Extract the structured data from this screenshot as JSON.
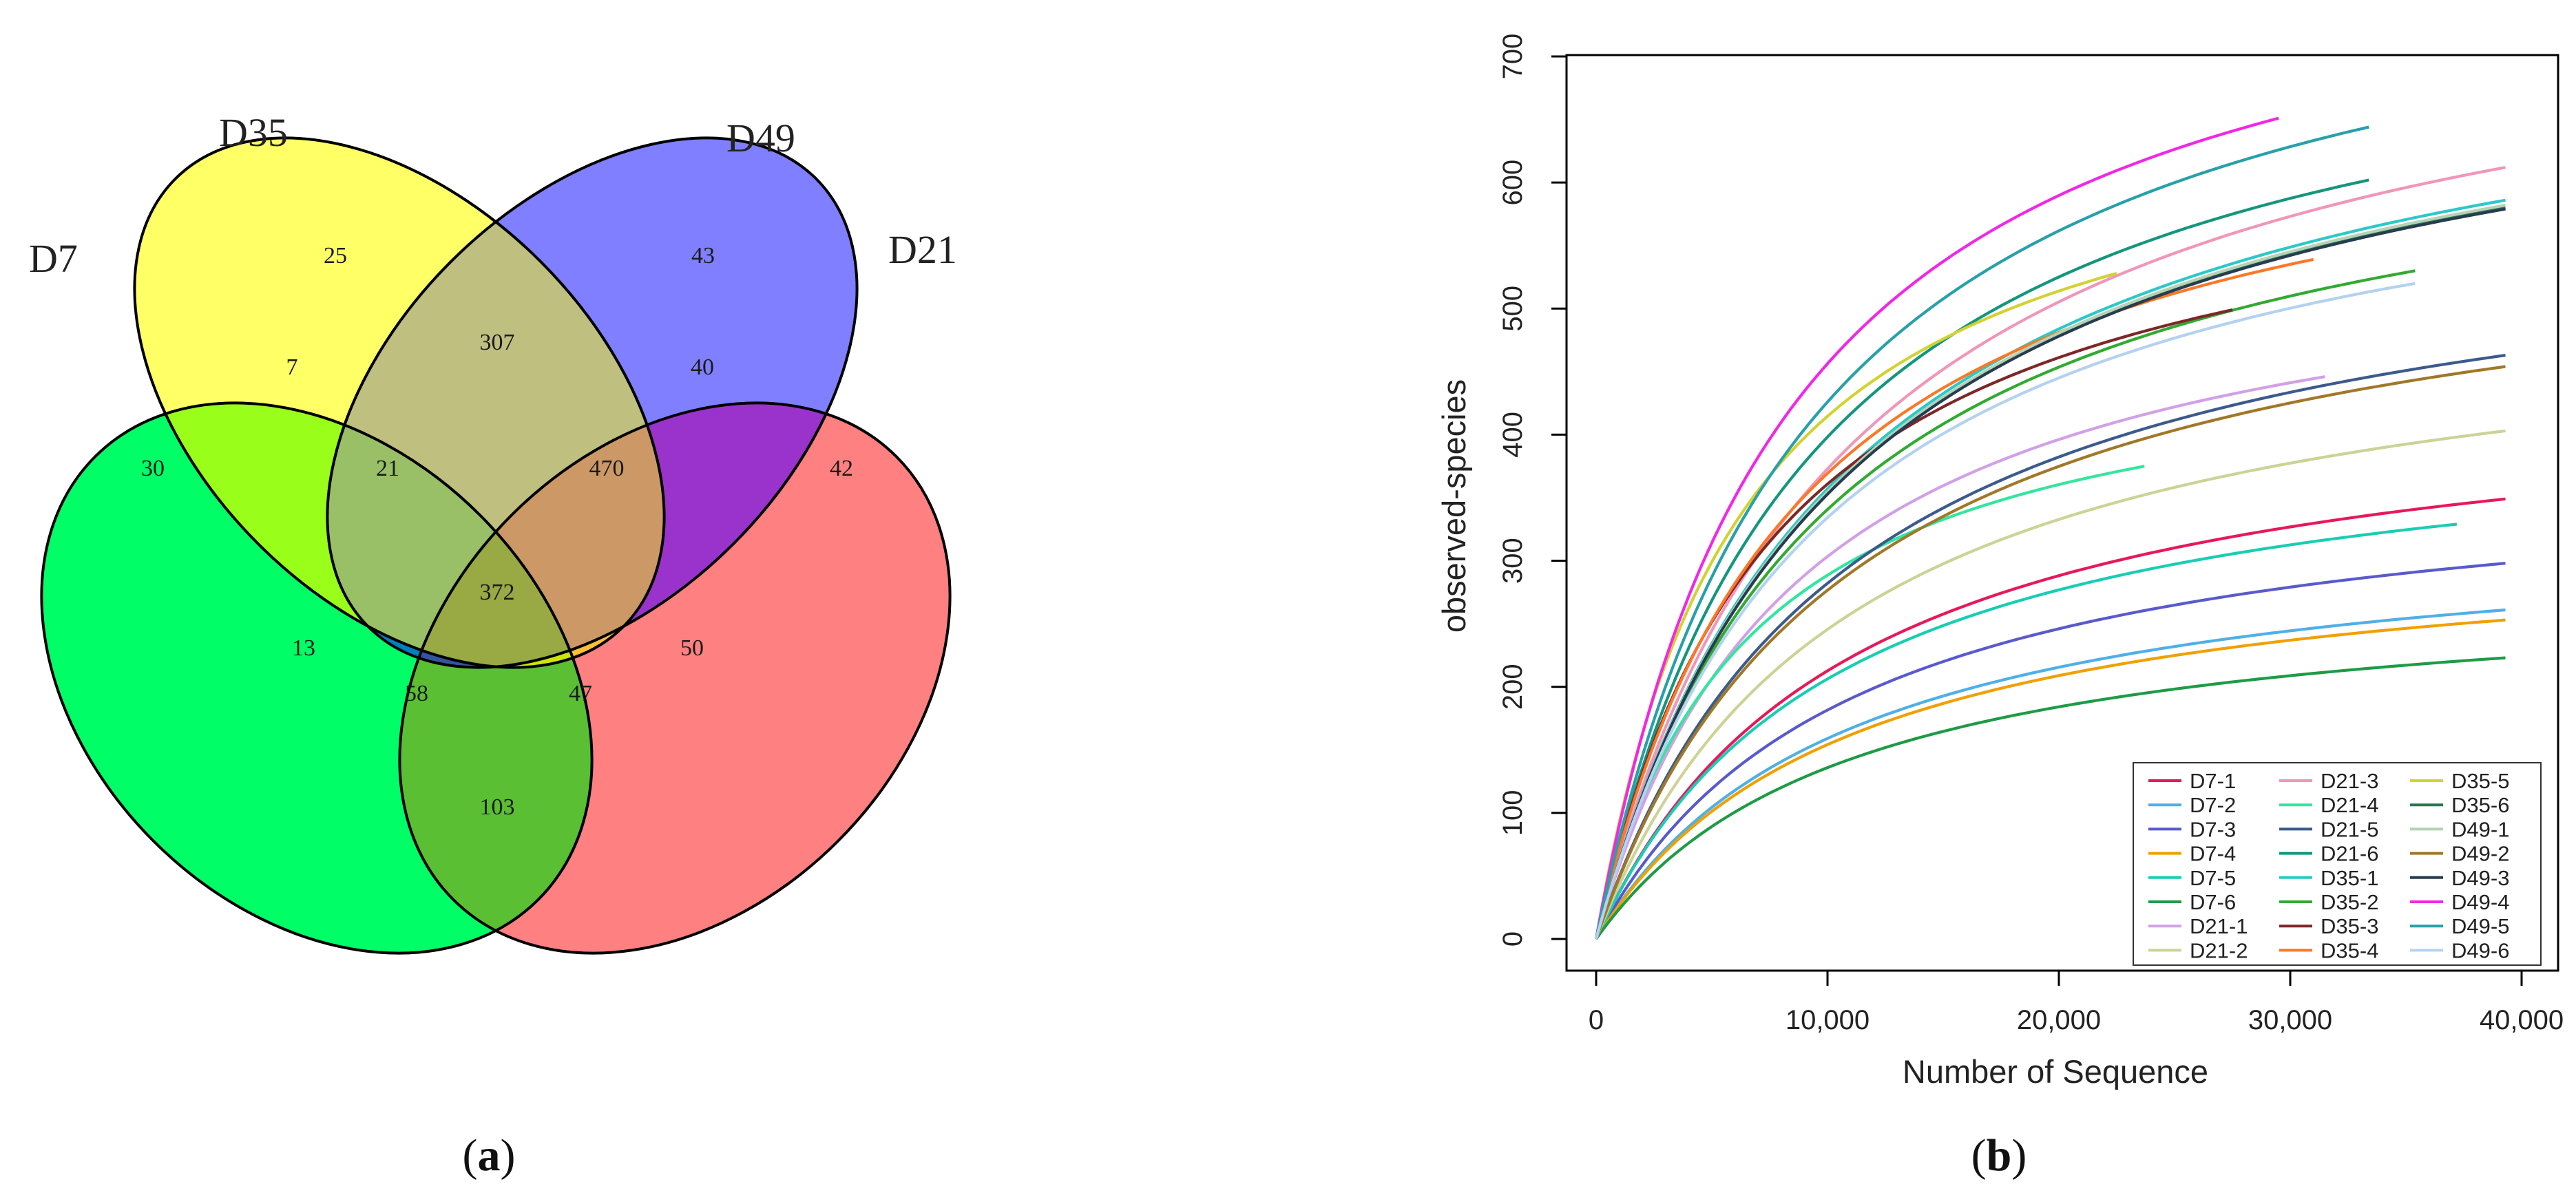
{
  "venn": {
    "sets": [
      {
        "name": "D7",
        "color": "#00FF66"
      },
      {
        "name": "D35",
        "color": "#FFFF66"
      },
      {
        "name": "D49",
        "color": "#7F7FFF"
      },
      {
        "name": "D21",
        "color": "#FF8080"
      }
    ],
    "regions": [
      {
        "id": "d7_only",
        "count": "30"
      },
      {
        "id": "d35_only",
        "count": "25"
      },
      {
        "id": "d49_only",
        "count": "43"
      },
      {
        "id": "d21_only",
        "count": "42"
      },
      {
        "id": "d7_d35",
        "count": "7"
      },
      {
        "id": "d35_d49",
        "count": "307"
      },
      {
        "id": "d49_d21",
        "count": "40"
      },
      {
        "id": "d7_d35_d49",
        "count": "21"
      },
      {
        "id": "d35_d49_d21",
        "count": "470"
      },
      {
        "id": "all_four",
        "count": "372"
      },
      {
        "id": "d7_d49",
        "count": "13"
      },
      {
        "id": "d7_d49_d21",
        "count": "58"
      },
      {
        "id": "d7_d35_d21",
        "count": "47"
      },
      {
        "id": "d35_d21",
        "count": "50"
      },
      {
        "id": "d7_d21",
        "count": "103"
      }
    ],
    "fills": {
      "d7_d35": "#99FF1A",
      "d35_d49": "#BFBF80",
      "d49_d21": "#9933CC",
      "d7_d35_d49": "#99C066",
      "d35_d49_d21": "#CC9966",
      "all_four": "#99AA44",
      "d7_d49": "#0080C0",
      "d7_d49_d21": "#33559F",
      "d7_d35_d21": "#CCE600",
      "d35_d21": "#FFBF33",
      "d7_d21": "#5ABF33"
    }
  },
  "panel_labels": {
    "a": "a",
    "b": "b"
  },
  "chart_data": {
    "type": "line",
    "title": "",
    "xlabel": "Number of Sequence",
    "ylabel": "observed-species",
    "xlim": [
      0,
      40000
    ],
    "ylim": [
      0,
      700
    ],
    "xticks": [
      "0",
      "10,000",
      "20,000",
      "30,000",
      "40,000"
    ],
    "yticks": [
      "0",
      "100",
      "200",
      "300",
      "400",
      "500",
      "600",
      "700"
    ],
    "grid": false,
    "legend_position": "bottom-right",
    "series": [
      {
        "name": "D7-1",
        "color": "#E6195A",
        "x_end": 39300,
        "y_end": 349
      },
      {
        "name": "D7-2",
        "color": "#4FB0E6",
        "x_end": 39300,
        "y_end": 261
      },
      {
        "name": "D7-3",
        "color": "#5A5ACD",
        "x_end": 39300,
        "y_end": 298
      },
      {
        "name": "D7-4",
        "color": "#F0A000",
        "x_end": 39300,
        "y_end": 253
      },
      {
        "name": "D7-5",
        "color": "#19CDB4",
        "x_end": 37200,
        "y_end": 329
      },
      {
        "name": "D7-6",
        "color": "#1E9B46",
        "x_end": 39300,
        "y_end": 223
      },
      {
        "name": "D21-1",
        "color": "#D2A0E6",
        "x_end": 31500,
        "y_end": 446
      },
      {
        "name": "D21-2",
        "color": "#CDD296",
        "x_end": 39300,
        "y_end": 403
      },
      {
        "name": "D21-3",
        "color": "#F096B9",
        "x_end": 39300,
        "y_end": 612
      },
      {
        "name": "D21-4",
        "color": "#32E6A0",
        "x_end": 23700,
        "y_end": 375
      },
      {
        "name": "D21-5",
        "color": "#3C5A8C",
        "x_end": 39300,
        "y_end": 463
      },
      {
        "name": "D21-6",
        "color": "#14967D",
        "x_end": 33400,
        "y_end": 602
      },
      {
        "name": "D35-1",
        "color": "#2DC8C8",
        "x_end": 39300,
        "y_end": 586
      },
      {
        "name": "D35-2",
        "color": "#32AA32",
        "x_end": 35400,
        "y_end": 530
      },
      {
        "name": "D35-3",
        "color": "#7D2828",
        "x_end": 27500,
        "y_end": 499
      },
      {
        "name": "D35-4",
        "color": "#FA7828",
        "x_end": 31000,
        "y_end": 539
      },
      {
        "name": "D35-5",
        "color": "#D2D232",
        "x_end": 22500,
        "y_end": 528
      },
      {
        "name": "D35-6",
        "color": "#287850",
        "x_end": 39300,
        "y_end": 580
      },
      {
        "name": "D49-1",
        "color": "#B4D2B4",
        "x_end": 39300,
        "y_end": 582
      },
      {
        "name": "D49-2",
        "color": "#A07828",
        "x_end": 39300,
        "y_end": 454
      },
      {
        "name": "D49-3",
        "color": "#283C50",
        "x_end": 39300,
        "y_end": 579
      },
      {
        "name": "D49-4",
        "color": "#F028E6",
        "x_end": 29500,
        "y_end": 651
      },
      {
        "name": "D49-5",
        "color": "#28A0AA",
        "x_end": 33400,
        "y_end": 644
      },
      {
        "name": "D49-6",
        "color": "#B4D2F0",
        "x_end": 35400,
        "y_end": 520
      }
    ]
  }
}
